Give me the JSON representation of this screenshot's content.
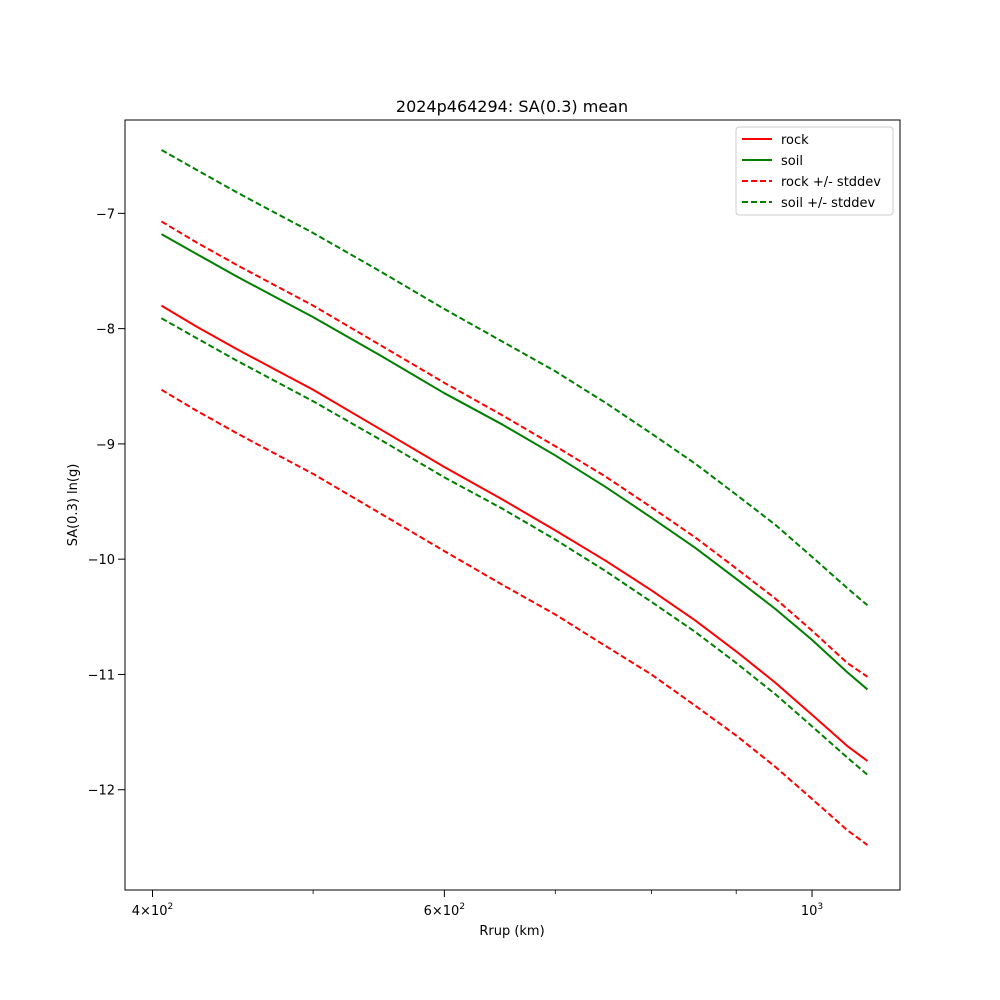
{
  "chart_data": {
    "type": "line",
    "title": "2024p464294: SA(0.3) mean",
    "xlabel": "Rrup (km)",
    "ylabel": "SA(0.3) ln(g)",
    "xscale": "log",
    "xlim": [
      385,
      1130
    ],
    "ylim": [
      -12.87,
      -6.19
    ],
    "x_ticks_major": [
      {
        "value": 400,
        "mantissa": "4",
        "sep": "×",
        "base": "10",
        "exp": "2"
      },
      {
        "value": 600,
        "mantissa": "6",
        "sep": "×",
        "base": "10",
        "exp": "2"
      },
      {
        "value": 1000,
        "mantissa": "",
        "sep": "",
        "base": "10",
        "exp": "3"
      }
    ],
    "x_ticks_minor": [
      500,
      700,
      800,
      900
    ],
    "y_ticks": [
      {
        "value": -7,
        "label": "−7"
      },
      {
        "value": -8,
        "label": "−8"
      },
      {
        "value": -9,
        "label": "−9"
      },
      {
        "value": -10,
        "label": "−10"
      },
      {
        "value": -11,
        "label": "−11"
      },
      {
        "value": -12,
        "label": "−12"
      }
    ],
    "grid": false,
    "legend_position": "top-right",
    "legend": [
      {
        "label": "rock",
        "color": "#ff0000",
        "style": "solid"
      },
      {
        "label": "soil",
        "color": "#008000",
        "style": "solid"
      },
      {
        "label": "rock +/- stddev",
        "color": "#ff0000",
        "style": "dashed"
      },
      {
        "label": "soil +/- stddev",
        "color": "#008000",
        "style": "dashed"
      }
    ],
    "x": [
      405,
      425,
      450,
      475,
      500,
      550,
      600,
      650,
      700,
      750,
      800,
      850,
      900,
      950,
      1000,
      1050,
      1080
    ],
    "series": [
      {
        "name": "rock",
        "color": "#ff0000",
        "style": "solid",
        "values": [
          -7.8,
          -7.98,
          -8.18,
          -8.36,
          -8.53,
          -8.88,
          -9.2,
          -9.48,
          -9.75,
          -10.01,
          -10.27,
          -10.53,
          -10.8,
          -11.07,
          -11.35,
          -11.62,
          -11.75
        ]
      },
      {
        "name": "soil",
        "color": "#008000",
        "style": "solid",
        "values": [
          -7.18,
          -7.35,
          -7.55,
          -7.73,
          -7.9,
          -8.24,
          -8.56,
          -8.83,
          -9.1,
          -9.37,
          -9.64,
          -9.9,
          -10.17,
          -10.43,
          -10.7,
          -10.98,
          -11.13
        ]
      },
      {
        "name": "rock +/- stddev",
        "color": "#ff0000",
        "style": "dashed",
        "values": [
          -7.07,
          -7.25,
          -7.45,
          -7.63,
          -7.8,
          -8.15,
          -8.47,
          -8.75,
          -9.02,
          -9.28,
          -9.55,
          -9.81,
          -10.08,
          -10.34,
          -10.62,
          -10.9,
          -11.02
        ]
      },
      {
        "name": "rock +/- stddev",
        "color": "#ff0000",
        "style": "dashed",
        "values": [
          -8.53,
          -8.71,
          -8.91,
          -9.09,
          -9.26,
          -9.61,
          -9.93,
          -10.22,
          -10.48,
          -10.75,
          -11.0,
          -11.27,
          -11.53,
          -11.8,
          -12.08,
          -12.35,
          -12.48
        ]
      },
      {
        "name": "soil +/- stddev",
        "color": "#008000",
        "style": "dashed",
        "values": [
          -6.45,
          -6.62,
          -6.82,
          -7.0,
          -7.17,
          -7.51,
          -7.83,
          -8.11,
          -8.37,
          -8.64,
          -8.91,
          -9.17,
          -9.44,
          -9.7,
          -9.98,
          -10.25,
          -10.4
        ]
      },
      {
        "name": "soil +/- stddev",
        "color": "#008000",
        "style": "dashed",
        "values": [
          -7.91,
          -8.08,
          -8.28,
          -8.46,
          -8.63,
          -8.97,
          -9.29,
          -9.56,
          -9.83,
          -10.1,
          -10.37,
          -10.63,
          -10.9,
          -11.17,
          -11.45,
          -11.72,
          -11.87
        ]
      }
    ]
  }
}
